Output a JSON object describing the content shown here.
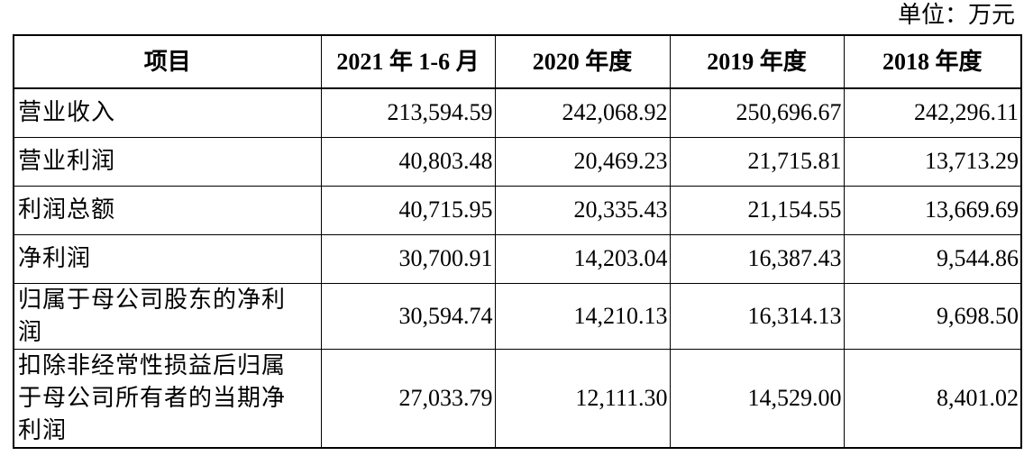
{
  "header": {
    "unit": "单位：万元"
  },
  "table": {
    "columns": [
      "项目",
      "2021 年 1-6 月",
      "2020 年度",
      "2019 年度",
      "2018 年度"
    ],
    "rows": [
      [
        "营业收入",
        "213,594.59",
        "242,068.92",
        "250,696.67",
        "242,296.11"
      ],
      [
        "营业利润",
        "40,803.48",
        "20,469.23",
        "21,715.81",
        "13,713.29"
      ],
      [
        "利润总额",
        "40,715.95",
        "20,335.43",
        "21,154.55",
        "13,669.69"
      ],
      [
        "净利润",
        "30,700.91",
        "14,203.04",
        "16,387.43",
        "9,544.86"
      ],
      [
        "归属于母公司股东的净利润",
        "30,594.74",
        "14,210.13",
        "16,314.13",
        "9,698.50"
      ],
      [
        "扣除非经常性损益后归属于母公司所有者的当期净利润",
        "27,033.79",
        "12,111.30",
        "14,529.00",
        "8,401.02"
      ]
    ]
  }
}
